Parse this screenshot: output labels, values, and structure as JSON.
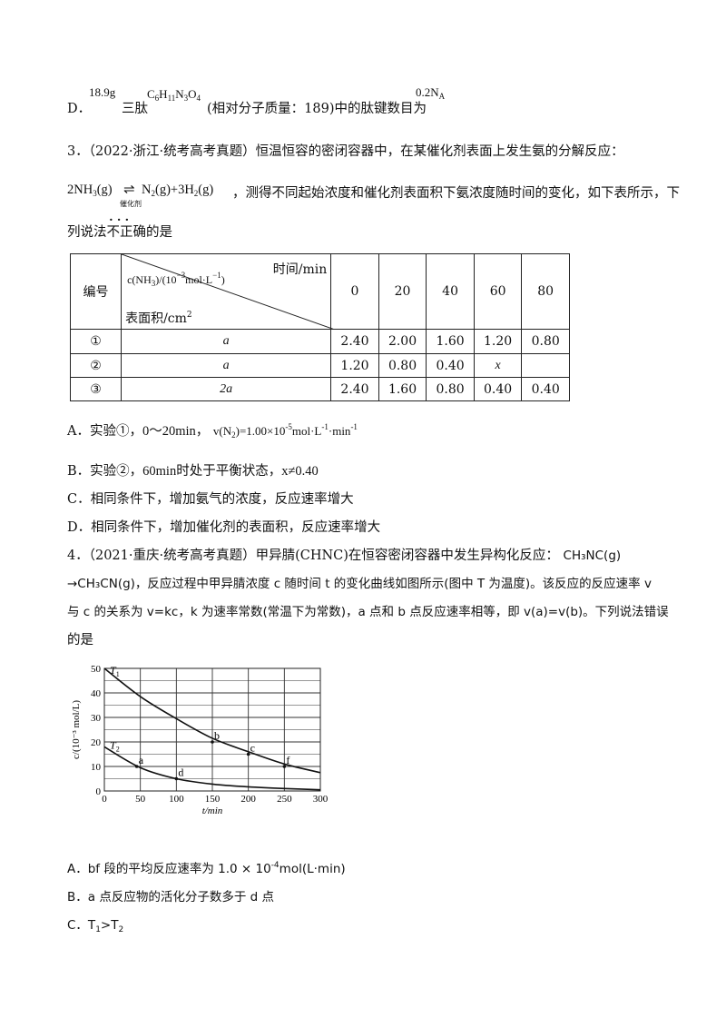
{
  "q2_option_d": {
    "label": "D．",
    "mass": "18.9g",
    "peptide_word": "三肽",
    "formula_parts": [
      "C",
      "6",
      "H",
      "11",
      "N",
      "3",
      "O",
      "4"
    ],
    "note": "(相对分子质量：189)中的肽键数目为",
    "answer": "0.2N",
    "answer_sub": "A"
  },
  "q3": {
    "header": "3．（2022·浙江·统考高考真题）恒温恒容的密闭容器中，在某催化剂表面上发生氨的分解反应：",
    "equation": {
      "lhs": "2NH",
      "lhs_sub": "3",
      "lhs_state": "(g)",
      "arrow": "⇌",
      "catalyst": "催化剂",
      "rhs1": "N",
      "rhs1_sub": "2",
      "rhs1_state": "(g)+3H",
      "rhs2_sub": "2",
      "rhs2_state": "(g)"
    },
    "text_after_eq": "，测得不同起始浓度和催化剂表面积下氨浓度随时间的变化，如下表所示，下",
    "line2_prefix": "列说法",
    "line2_emph": "不正确",
    "line2_suffix": "的是",
    "table": {
      "col_id": "编号",
      "col_conc": "c(NH",
      "col_conc_sub": "3",
      "col_conc_unit": ")/(10",
      "col_conc_sup": "−3",
      "col_conc_unit2": "mol·L",
      "col_conc_sup2": "−1",
      "col_conc_end": ")",
      "col_time": "时间/min",
      "col_area": "表面积/cm",
      "col_area_sup": "2",
      "times": [
        "0",
        "20",
        "40",
        "60",
        "80"
      ],
      "rows": [
        {
          "id": "①",
          "area": "a",
          "values": [
            "2.40",
            "2.00",
            "1.60",
            "1.20",
            "0.80"
          ]
        },
        {
          "id": "②",
          "area": "a",
          "values": [
            "1.20",
            "0.80",
            "0.40",
            "x",
            ""
          ]
        },
        {
          "id": "③",
          "area": "2a",
          "values": [
            "2.40",
            "1.60",
            "0.80",
            "0.40",
            "0.40"
          ]
        }
      ]
    },
    "options": {
      "A_pre": "A．实验①，",
      "A_range": "0～20min",
      "A_comma": "，",
      "A_rate": "v(N",
      "A_rate_sub": "2",
      "A_rate_val": ")=1.00×10",
      "A_rate_sup": "-5",
      "A_rate_unit": "mol·L",
      "A_rate_unit_sup": "-1",
      "A_rate_unit2": "·min",
      "A_rate_unit2_sup": "-1",
      "B_pre": "B．实验②，",
      "B_time": "60min",
      "B_text": "时处于平衡状态，",
      "B_ineq": "x≠0.40",
      "C": "C．相同条件下，增加氨气的浓度，反应速率增大",
      "D": "D．相同条件下，增加催化剂的表面积，反应速率增大"
    }
  },
  "q4": {
    "line1": "4．（2021·重庆·统考高考真题）甲异腈(CHNC)在恒容密闭容器中发生异构化反应：",
    "line1_eq": "CH₃NC(g)",
    "line2": "→CH₃CN(g)，反应过程中甲异腈浓度 c 随时间 t 的变化曲线如图所示(图中 T 为温度)。该反应的反应速率 v",
    "line3": "与 c 的关系为 v=kc，k 为速率常数(常温下为常数)，a 点和 b 点反应速率相等，即 v(a)=v(b)。下列说法错误",
    "line4": "的是",
    "options": {
      "A_pre": "A．bf 段的平均反应速率为 1.0 × 10",
      "A_sup": "-4",
      "A_post": "mol(L·min)",
      "B": "B．a 点反应物的活化分子数多于 d 点",
      "C_pre": "C．T",
      "C_sub1": "1",
      "C_mid": ">T",
      "C_sub2": "2"
    }
  },
  "chart_data": {
    "type": "line",
    "title": "",
    "xlabel": "t/min",
    "ylabel": "c/(10⁻³ mol/L)",
    "xlim": [
      0,
      300
    ],
    "ylim": [
      0,
      50
    ],
    "x_ticks": [
      "0",
      "50",
      "100",
      "150",
      "200",
      "250",
      "300"
    ],
    "y_ticks": [
      "0",
      "10",
      "20",
      "30",
      "40",
      "50"
    ],
    "grid": true,
    "series": [
      {
        "name": "T1",
        "x": [
          0,
          50,
          100,
          150,
          200,
          250,
          300
        ],
        "values": [
          50,
          38.5,
          29.5,
          21.5,
          16.0,
          11.0,
          7.5
        ]
      },
      {
        "name": "T2",
        "x": [
          0,
          50,
          100,
          150,
          200,
          250,
          300
        ],
        "values": [
          18,
          9.5,
          5.0,
          2.8,
          1.7,
          1.0,
          0.5
        ]
      }
    ],
    "curve_labels": [
      {
        "text": "T",
        "sub": "1",
        "series": 0
      },
      {
        "text": "T",
        "sub": "2",
        "series": 1
      }
    ],
    "points": [
      {
        "label": "a",
        "x": 45,
        "y": 10
      },
      {
        "label": "d",
        "x": 100,
        "y": 5
      },
      {
        "label": "b",
        "x": 150,
        "y": 20
      },
      {
        "label": "c",
        "x": 200,
        "y": 15
      },
      {
        "label": "f",
        "x": 250,
        "y": 10
      }
    ]
  }
}
